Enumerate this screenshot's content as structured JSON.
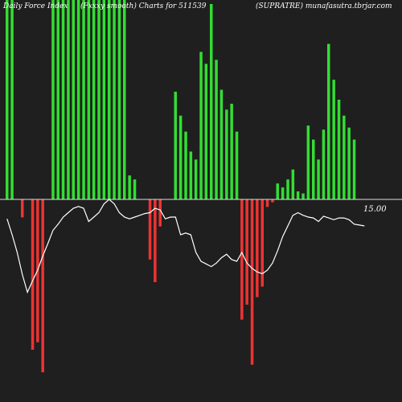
{
  "header": {
    "left": "Daily Force Index",
    "mid": "(Fxxxy smooth) Charts for 511539",
    "right": "(SUPRATRE) munafasutra.tbrjar.com"
  },
  "chart_data": {
    "type": "bar",
    "zero_label": "15.00",
    "colors": {
      "positive": "#33dd33",
      "negative": "#ee3333",
      "line": "#ffffff",
      "baseline": "#dddddd",
      "background": "#1f1f1f"
    },
    "values": [
      100,
      100,
      0,
      -12,
      0,
      -100,
      -95,
      -115,
      0,
      100,
      100,
      100,
      100,
      100,
      100,
      100,
      100,
      100,
      100,
      100,
      100,
      100,
      100,
      100,
      12,
      10,
      0,
      0,
      -40,
      -55,
      -18,
      0,
      0,
      54,
      42,
      34,
      24,
      20,
      74,
      68,
      98,
      70,
      55,
      45,
      48,
      34,
      -80,
      -70,
      -110,
      -65,
      -58,
      -5,
      -2,
      8,
      6,
      10,
      15,
      4,
      3,
      37,
      30,
      20,
      35,
      78,
      60,
      50,
      42,
      36,
      30,
      0,
      0
    ],
    "smooth_line": [
      22,
      40,
      60,
      85,
      105,
      92,
      80,
      64,
      50,
      35,
      28,
      20,
      15,
      10,
      8,
      10,
      25,
      20,
      15,
      5,
      0,
      5,
      15,
      20,
      22,
      20,
      18,
      16,
      15,
      10,
      12,
      22,
      20,
      20,
      40,
      38,
      40,
      60,
      70,
      73,
      76,
      72,
      66,
      62,
      68,
      70,
      60,
      72,
      78,
      82,
      84,
      80,
      72,
      58,
      42,
      30,
      18,
      15,
      18,
      20,
      21,
      25,
      19,
      21,
      23,
      21,
      21,
      23,
      28,
      29,
      30
    ]
  }
}
